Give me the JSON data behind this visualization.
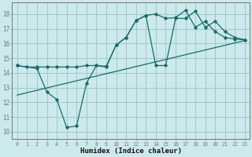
{
  "xlabel": "Humidex (Indice chaleur)",
  "xlim": [
    -0.5,
    23.5
  ],
  "ylim": [
    9.5,
    18.8
  ],
  "yticks": [
    10,
    11,
    12,
    13,
    14,
    15,
    16,
    17,
    18
  ],
  "xticks": [
    0,
    1,
    2,
    3,
    4,
    5,
    6,
    7,
    8,
    9,
    10,
    11,
    12,
    13,
    14,
    15,
    16,
    17,
    18,
    19,
    20,
    21,
    22,
    23
  ],
  "bg_color": "#cce9eb",
  "grid_color": "#a0c8cc",
  "line_color": "#1a6b6b",
  "line1_x": [
    0,
    1,
    2,
    3,
    4,
    5,
    6,
    7,
    8,
    9,
    10,
    11,
    12,
    13,
    14,
    15,
    16,
    17,
    18,
    19,
    20,
    21,
    22,
    23
  ],
  "line1_y": [
    14.5,
    14.4,
    14.4,
    14.4,
    14.4,
    14.4,
    14.4,
    14.5,
    14.5,
    14.45,
    15.9,
    16.4,
    17.55,
    17.9,
    18.0,
    17.7,
    17.75,
    18.25,
    17.1,
    17.5,
    16.8,
    16.4,
    16.3,
    16.25
  ],
  "line2_x": [
    0,
    2,
    3,
    4,
    5,
    6,
    7,
    8,
    9,
    10,
    11,
    12,
    13,
    14,
    15,
    16,
    17,
    18,
    19,
    20,
    21,
    22,
    23
  ],
  "line2_y": [
    14.5,
    14.3,
    12.7,
    12.2,
    10.3,
    10.4,
    13.3,
    14.5,
    14.4,
    15.9,
    16.4,
    17.55,
    17.9,
    14.5,
    14.5,
    17.7,
    17.7,
    18.2,
    17.1,
    17.5,
    16.8,
    16.4,
    16.25
  ],
  "line3_x": [
    0,
    23
  ],
  "line3_y": [
    12.5,
    16.2
  ]
}
